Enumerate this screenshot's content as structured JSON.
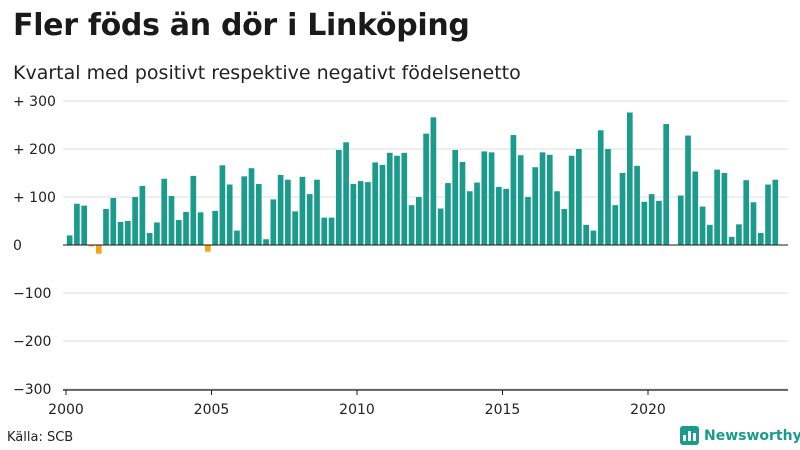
{
  "title": "Fler föds än dör i Linköping",
  "subtitle": "Kvartal med positivt respektive negativt födelsenetto",
  "source": "Källa: SCB",
  "brand": "Newsworthy",
  "colors": {
    "positive": "#1a9b8b",
    "negative": "#f5a318",
    "grid": "#dddddd",
    "axis": "#1a1a1a"
  },
  "chart_data": {
    "type": "bar",
    "title": "Fler föds än dör i Linköping",
    "subtitle": "Kvartal med positivt respektive negativt födelsenetto",
    "xlabel": "",
    "ylabel": "",
    "ylim": [
      -300,
      300
    ],
    "yticks": [
      {
        "value": 300,
        "label": "+ 300"
      },
      {
        "value": 200,
        "label": "+ 200"
      },
      {
        "value": 100,
        "label": "+ 100"
      },
      {
        "value": 0,
        "label": "0"
      },
      {
        "value": -100,
        "label": "−100"
      },
      {
        "value": -200,
        "label": "−200"
      },
      {
        "value": -300,
        "label": "−300"
      }
    ],
    "xticks": [
      {
        "value": 2000,
        "label": "2000"
      },
      {
        "value": 2005,
        "label": "2005"
      },
      {
        "value": 2010,
        "label": "2010"
      },
      {
        "value": 2015,
        "label": "2015"
      },
      {
        "value": 2020,
        "label": "2020"
      }
    ],
    "start_year": 2000,
    "periods_per_year": 4,
    "values": [
      20,
      86,
      82,
      -3,
      -18,
      75,
      98,
      48,
      50,
      100,
      123,
      25,
      47,
      138,
      102,
      52,
      69,
      144,
      68,
      -14,
      71,
      166,
      126,
      30,
      143,
      160,
      127,
      12,
      95,
      146,
      136,
      70,
      142,
      106,
      136,
      57,
      57,
      198,
      214,
      127,
      133,
      131,
      172,
      167,
      192,
      186,
      192,
      83,
      100,
      232,
      266,
      76,
      129,
      198,
      173,
      112,
      130,
      195,
      193,
      121,
      117,
      229,
      187,
      100,
      162,
      193,
      188,
      112,
      75,
      186,
      200,
      42,
      30,
      239,
      200,
      83,
      150,
      276,
      165,
      90,
      106,
      92,
      252,
      1,
      103,
      228,
      153,
      80,
      42,
      157,
      150,
      17,
      43,
      135,
      89,
      25,
      126,
      136
    ]
  }
}
